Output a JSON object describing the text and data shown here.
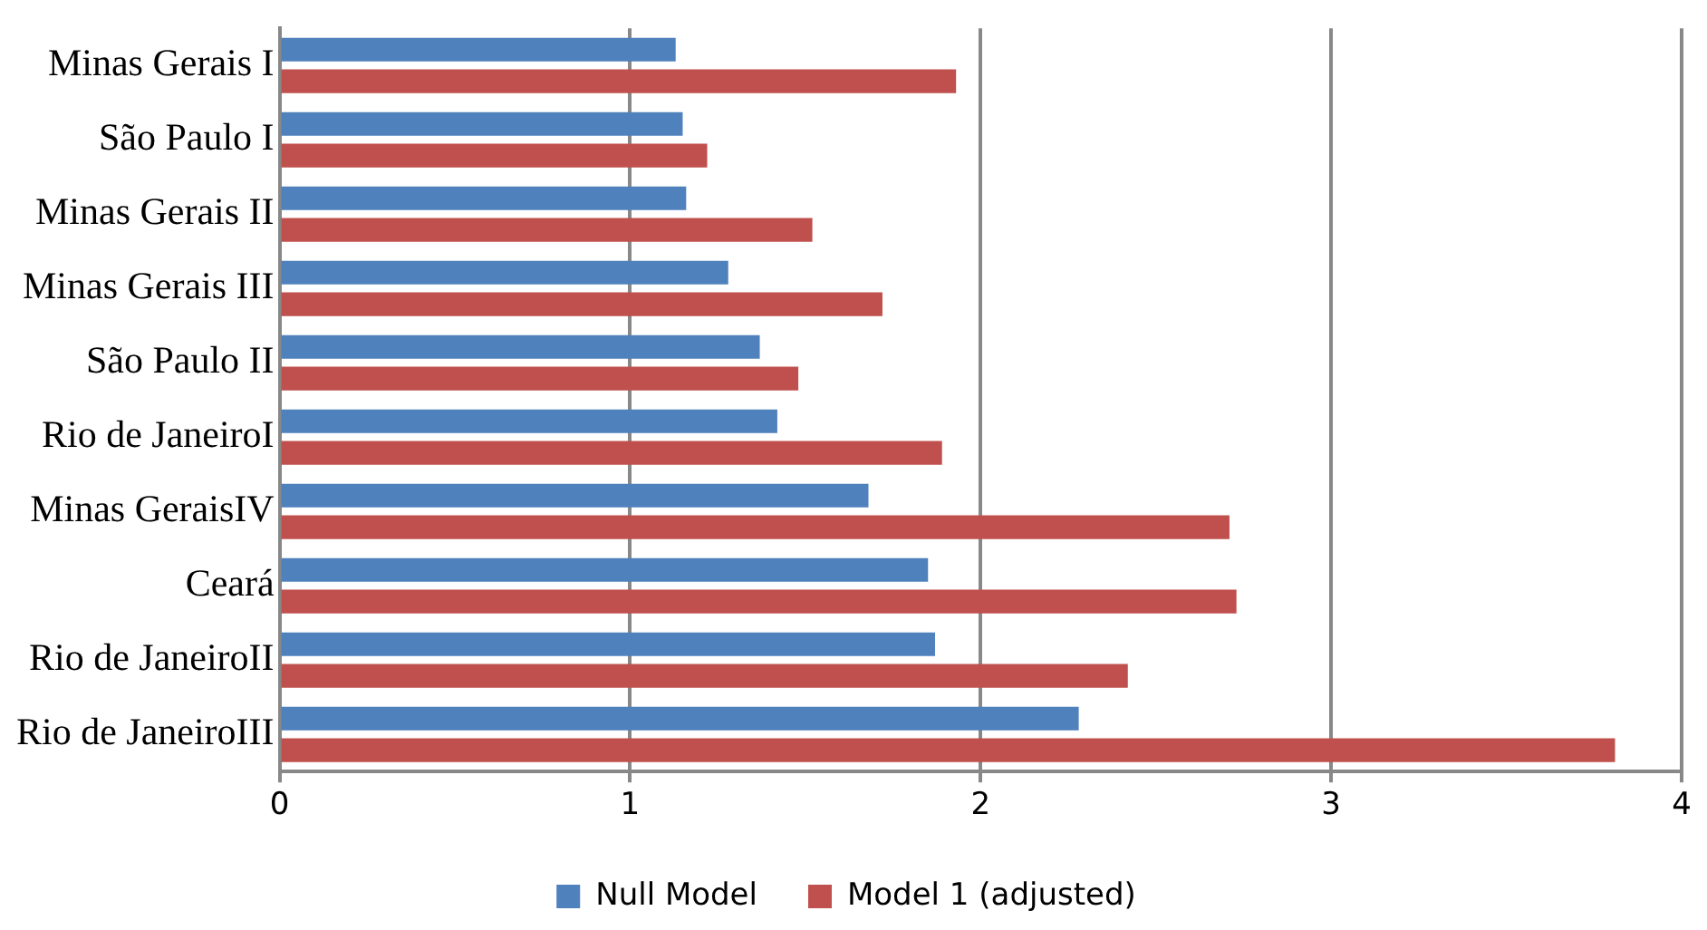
{
  "chart_data": {
    "type": "bar",
    "orientation": "horizontal",
    "categories": [
      "Minas Gerais I",
      "São Paulo I",
      "Minas Gerais II",
      "Minas Gerais III",
      "São Paulo II",
      "Rio de JaneiroI",
      "Minas GeraisIV",
      "Ceará",
      "Rio de JaneiroII",
      "Rio de JaneiroIII"
    ],
    "series": [
      {
        "name": "Null Model",
        "color": "#4f81bd",
        "values": [
          1.13,
          1.15,
          1.16,
          1.28,
          1.37,
          1.42,
          1.68,
          1.85,
          1.87,
          2.28
        ]
      },
      {
        "name": "Model 1 (adjusted)",
        "color": "#c0504d",
        "values": [
          1.93,
          1.22,
          1.52,
          1.72,
          1.48,
          1.89,
          2.71,
          2.73,
          2.42,
          3.81
        ]
      }
    ],
    "xlim": [
      0,
      4
    ],
    "xticks": [
      0,
      1,
      2,
      3,
      4
    ],
    "grid": "x",
    "legend": "bottom"
  }
}
